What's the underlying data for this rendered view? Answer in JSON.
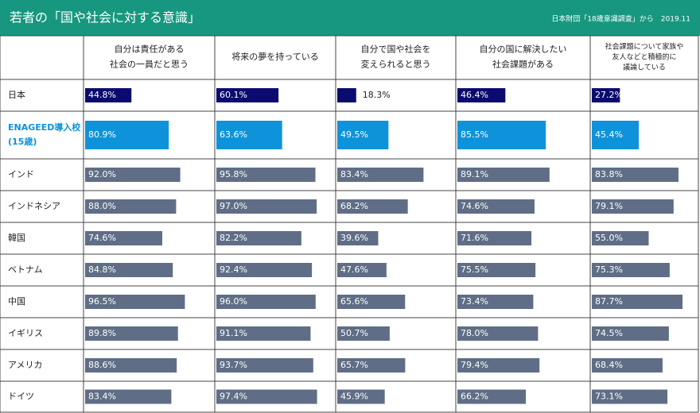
{
  "chart_data": {
    "type": "table-bar",
    "title": "若者の「国や社会に対する意識」",
    "source": "日本財団「18歳意識調査」から　2019.11",
    "xlim": [
      0,
      100
    ],
    "categories": [
      "日本",
      [
        "ENAGEED導入校",
        "(15歳)"
      ],
      "インド",
      "インドネシア",
      "韓国",
      "ベトナム",
      "中国",
      "イギリス",
      "アメリカ",
      "ドイツ"
    ],
    "colors": [
      "#0b0b6f",
      "#0e93db",
      "#5f6e86",
      "#5f6e86",
      "#5f6e86",
      "#5f6e86",
      "#5f6e86",
      "#5f6e86",
      "#5f6e86",
      "#5f6e86"
    ],
    "series": [
      {
        "name": [
          "自分は責任がある",
          "社会の一員だと思う"
        ],
        "values": [
          44.8,
          80.9,
          92.0,
          88.0,
          74.6,
          84.8,
          96.5,
          89.8,
          88.6,
          83.4
        ],
        "value_labels": [
          "44.8%",
          "80.9%",
          "92.0%",
          "88.0%",
          "74.6%",
          "84.8%",
          "96.5%",
          "89.8%",
          "88.6%",
          "83.4%"
        ]
      },
      {
        "name": [
          "将来の夢を持っている"
        ],
        "values": [
          60.1,
          63.6,
          95.8,
          97.0,
          82.2,
          92.4,
          96.0,
          91.1,
          93.7,
          97.4
        ],
        "value_labels": [
          "60.1%",
          "63.6%",
          "95.8%",
          "97.0%",
          "82.2%",
          "92.4%",
          "96.0%",
          "91.1%",
          "93.7%",
          "97.4%"
        ]
      },
      {
        "name": [
          "自分で国や社会を",
          "変えられると思う"
        ],
        "values": [
          18.3,
          49.5,
          83.4,
          68.2,
          39.6,
          47.6,
          65.6,
          50.7,
          65.7,
          45.9
        ],
        "value_labels": [
          "18.3%",
          "49.5%",
          "83.4%",
          "68.2%",
          "39.6%",
          "47.6%",
          "65.6%",
          "50.7%",
          "65.7%",
          "45.9%"
        ]
      },
      {
        "name": [
          "自分の国に解決したい",
          "社会課題がある"
        ],
        "values": [
          46.4,
          85.5,
          89.1,
          74.6,
          71.6,
          75.5,
          73.4,
          78.0,
          79.4,
          66.2
        ],
        "value_labels": [
          "46.4%",
          "85.5%",
          "89.1%",
          "74.6%",
          "71.6%",
          "75.5%",
          "73.4%",
          "78.0%",
          "79.4%",
          "66.2%"
        ]
      },
      {
        "name": [
          "社会課題について家族や",
          "友人などと積極的に",
          "議論している"
        ],
        "values": [
          27.2,
          45.4,
          83.8,
          79.1,
          55.0,
          75.3,
          87.7,
          74.5,
          68.4,
          73.1
        ],
        "value_labels": [
          "27.2%",
          "45.4%",
          "83.8%",
          "79.1%",
          "55.0%",
          "75.3%",
          "87.7%",
          "74.5%",
          "68.4%",
          "73.1%"
        ]
      }
    ]
  }
}
